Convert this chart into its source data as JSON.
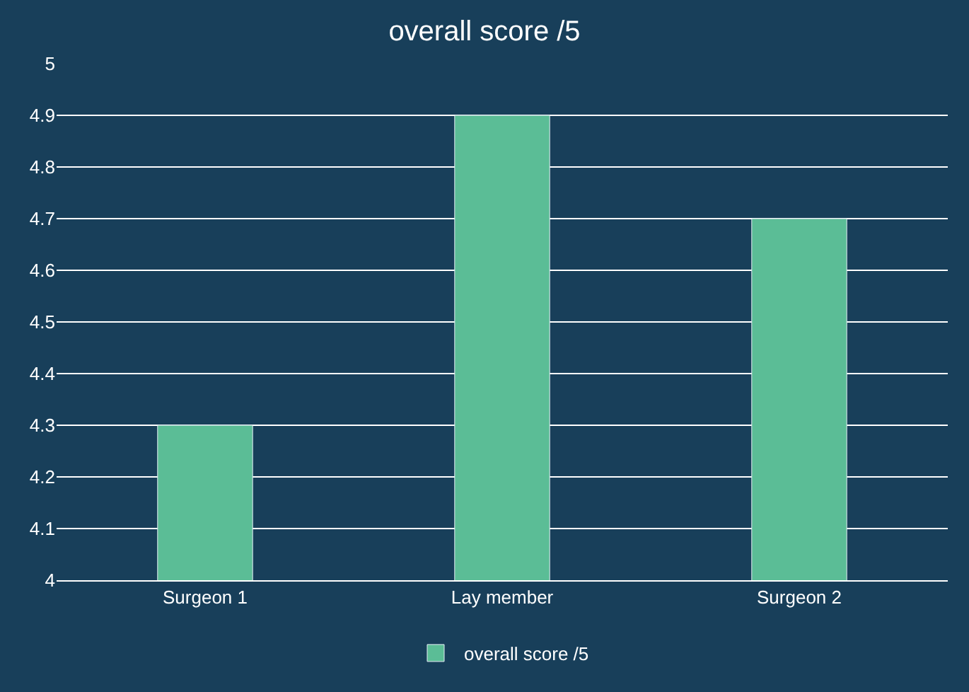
{
  "chart_data": {
    "type": "bar",
    "title": "overall score /5",
    "categories": [
      "Surgeon 1",
      "Lay member",
      "Surgeon 2"
    ],
    "series": [
      {
        "name": "overall score /5",
        "color": "#5bbd96",
        "values": [
          4.3,
          4.9,
          4.7
        ]
      }
    ],
    "ylim": [
      4,
      5
    ],
    "yticks": [
      4,
      4.1,
      4.2,
      4.3,
      4.4,
      4.5,
      4.6,
      4.7,
      4.8,
      4.9,
      5
    ],
    "grid": "y",
    "legend": "bottom"
  }
}
